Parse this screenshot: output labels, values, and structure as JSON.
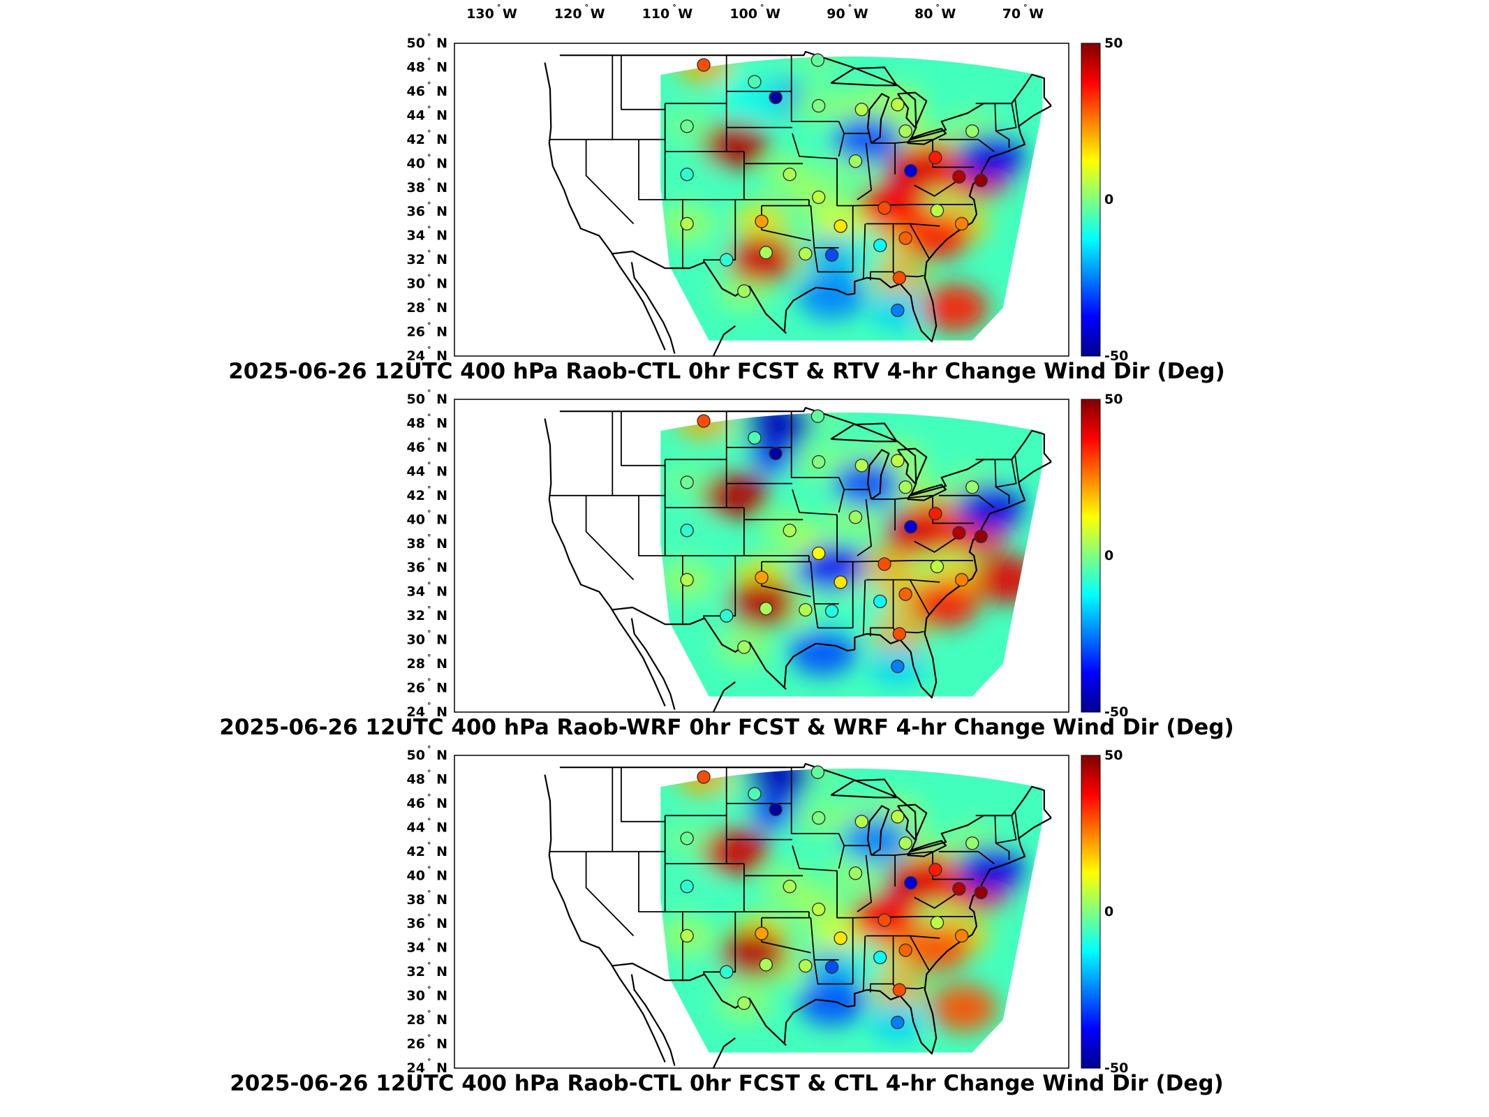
{
  "figure": {
    "lon_ticks": [
      {
        "value": -130,
        "deg": "130",
        "suffix": "W"
      },
      {
        "value": -120,
        "deg": "120",
        "suffix": "W"
      },
      {
        "value": -110,
        "deg": "110",
        "suffix": "W"
      },
      {
        "value": -100,
        "deg": "100",
        "suffix": "W"
      },
      {
        "value": -90,
        "deg": "90",
        "suffix": "W"
      },
      {
        "value": -80,
        "deg": "80",
        "suffix": "W"
      },
      {
        "value": -70,
        "deg": "70",
        "suffix": "W"
      }
    ],
    "lat_ticks": [
      {
        "value": 50,
        "deg": "50",
        "suffix": "N"
      },
      {
        "value": 48,
        "deg": "48",
        "suffix": "N"
      },
      {
        "value": 46,
        "deg": "46",
        "suffix": "N"
      },
      {
        "value": 44,
        "deg": "44",
        "suffix": "N"
      },
      {
        "value": 42,
        "deg": "42",
        "suffix": "N"
      },
      {
        "value": 40,
        "deg": "40",
        "suffix": "N"
      },
      {
        "value": 38,
        "deg": "38",
        "suffix": "N"
      },
      {
        "value": 36,
        "deg": "36",
        "suffix": "N"
      },
      {
        "value": 34,
        "deg": "34",
        "suffix": "N"
      },
      {
        "value": 32,
        "deg": "32",
        "suffix": "N"
      },
      {
        "value": 30,
        "deg": "30",
        "suffix": "N"
      },
      {
        "value": 28,
        "deg": "28",
        "suffix": "N"
      },
      {
        "value": 26,
        "deg": "26",
        "suffix": "N"
      },
      {
        "value": 24,
        "deg": "24",
        "suffix": "N"
      }
    ],
    "colorbar": {
      "min": -50,
      "max": 50,
      "labels": [
        "50",
        "0",
        "-50"
      ],
      "colormap": [
        "#00008f",
        "#0000ff",
        "#0080ff",
        "#00ffff",
        "#80ff80",
        "#ffff00",
        "#ff8000",
        "#ff0000",
        "#800000"
      ]
    },
    "colors": {
      "background": "#ffffff",
      "border": "#000000",
      "station_outline": "#333333"
    }
  },
  "chart_data": [
    {
      "type": "heatmap",
      "title": "2025-06-26 12UTC 400 hPa Raob-CTL 0hr FCST & RTV 4-hr Change Wind Dir (Deg)",
      "units": "Deg",
      "xlim": [
        -135,
        -65
      ],
      "ylim": [
        24,
        50
      ],
      "clim": [
        -50,
        50
      ],
      "stations": [
        {
          "lon": -106.6,
          "lat": 48.2,
          "value": 30
        },
        {
          "lon": -100.8,
          "lat": 46.8,
          "value": -5
        },
        {
          "lon": -98.4,
          "lat": 45.5,
          "value": -48
        },
        {
          "lon": -93.6,
          "lat": 48.6,
          "value": -3
        },
        {
          "lon": -93.5,
          "lat": 44.8,
          "value": 0
        },
        {
          "lon": -108.5,
          "lat": 43.1,
          "value": -2
        },
        {
          "lon": -108.5,
          "lat": 39.1,
          "value": -8
        },
        {
          "lon": -88.6,
          "lat": 44.5,
          "value": 5
        },
        {
          "lon": -84.5,
          "lat": 44.9,
          "value": 6
        },
        {
          "lon": -83.6,
          "lat": 42.7,
          "value": 4
        },
        {
          "lon": -76.0,
          "lat": 42.7,
          "value": 2
        },
        {
          "lon": -89.3,
          "lat": 40.2,
          "value": 3
        },
        {
          "lon": -83.0,
          "lat": 39.4,
          "value": -42
        },
        {
          "lon": -80.2,
          "lat": 40.5,
          "value": 35
        },
        {
          "lon": -77.5,
          "lat": 38.9,
          "value": 45
        },
        {
          "lon": -75.0,
          "lat": 38.6,
          "value": 48
        },
        {
          "lon": -96.8,
          "lat": 39.1,
          "value": 4
        },
        {
          "lon": -93.5,
          "lat": 37.2,
          "value": 6
        },
        {
          "lon": -86.0,
          "lat": 36.3,
          "value": 30
        },
        {
          "lon": -80.0,
          "lat": 36.1,
          "value": 6
        },
        {
          "lon": -77.2,
          "lat": 35.0,
          "value": 25
        },
        {
          "lon": -100.0,
          "lat": 35.2,
          "value": 22
        },
        {
          "lon": -91.0,
          "lat": 34.8,
          "value": 15
        },
        {
          "lon": -108.5,
          "lat": 35.0,
          "value": 5
        },
        {
          "lon": -104.0,
          "lat": 32.0,
          "value": -8
        },
        {
          "lon": -99.5,
          "lat": 32.6,
          "value": 4
        },
        {
          "lon": -95.0,
          "lat": 32.5,
          "value": 5
        },
        {
          "lon": -92.0,
          "lat": 32.4,
          "value": -30
        },
        {
          "lon": -86.5,
          "lat": 33.2,
          "value": -12
        },
        {
          "lon": -83.6,
          "lat": 33.8,
          "value": 28
        },
        {
          "lon": -84.3,
          "lat": 30.5,
          "value": 30
        },
        {
          "lon": -102.0,
          "lat": 29.4,
          "value": 3
        },
        {
          "lon": -84.5,
          "lat": 27.8,
          "value": -25
        }
      ],
      "field_features": [
        {
          "lon": -103,
          "lat": 41.5,
          "value": 45
        },
        {
          "lon": -101,
          "lat": 45.5,
          "value": -10
        },
        {
          "lon": -100,
          "lat": 32,
          "value": 42
        },
        {
          "lon": -85,
          "lat": 36.5,
          "value": 38
        },
        {
          "lon": -82,
          "lat": 39.5,
          "value": 40
        },
        {
          "lon": -80,
          "lat": 34,
          "value": 35
        },
        {
          "lon": -88,
          "lat": 42,
          "value": -30
        },
        {
          "lon": -92,
          "lat": 29,
          "value": -25
        },
        {
          "lon": -78,
          "lat": 28,
          "value": 35
        },
        {
          "lon": -74,
          "lat": 40.5,
          "value": -40
        }
      ]
    },
    {
      "type": "heatmap",
      "title": "2025-06-26 12UTC 400 hPa Raob-WRF 0hr FCST & WRF 4-hr Change Wind Dir (Deg)",
      "units": "Deg",
      "xlim": [
        -135,
        -65
      ],
      "ylim": [
        24,
        50
      ],
      "clim": [
        -50,
        50
      ],
      "stations": [
        {
          "lon": -106.6,
          "lat": 48.2,
          "value": 30
        },
        {
          "lon": -100.8,
          "lat": 46.8,
          "value": -5
        },
        {
          "lon": -98.4,
          "lat": 45.5,
          "value": -48
        },
        {
          "lon": -93.6,
          "lat": 48.6,
          "value": -3
        },
        {
          "lon": -93.5,
          "lat": 44.8,
          "value": 0
        },
        {
          "lon": -108.5,
          "lat": 43.1,
          "value": -2
        },
        {
          "lon": -108.5,
          "lat": 39.1,
          "value": -8
        },
        {
          "lon": -88.6,
          "lat": 44.5,
          "value": 5
        },
        {
          "lon": -84.5,
          "lat": 44.9,
          "value": 6
        },
        {
          "lon": -83.6,
          "lat": 42.7,
          "value": 4
        },
        {
          "lon": -76.0,
          "lat": 42.7,
          "value": 2
        },
        {
          "lon": -89.3,
          "lat": 40.2,
          "value": 3
        },
        {
          "lon": -83.0,
          "lat": 39.4,
          "value": -42
        },
        {
          "lon": -80.2,
          "lat": 40.5,
          "value": 35
        },
        {
          "lon": -77.5,
          "lat": 38.9,
          "value": 45
        },
        {
          "lon": -75.0,
          "lat": 38.6,
          "value": 48
        },
        {
          "lon": -96.8,
          "lat": 39.1,
          "value": 4
        },
        {
          "lon": -93.5,
          "lat": 37.2,
          "value": 12
        },
        {
          "lon": -86.0,
          "lat": 36.3,
          "value": 30
        },
        {
          "lon": -80.0,
          "lat": 36.1,
          "value": 6
        },
        {
          "lon": -77.2,
          "lat": 35.0,
          "value": 25
        },
        {
          "lon": -100.0,
          "lat": 35.2,
          "value": 22
        },
        {
          "lon": -91.0,
          "lat": 34.8,
          "value": 15
        },
        {
          "lon": -108.5,
          "lat": 35.0,
          "value": 5
        },
        {
          "lon": -104.0,
          "lat": 32.0,
          "value": -8
        },
        {
          "lon": -99.5,
          "lat": 32.6,
          "value": 4
        },
        {
          "lon": -95.0,
          "lat": 32.5,
          "value": 5
        },
        {
          "lon": -92.0,
          "lat": 32.4,
          "value": -10
        },
        {
          "lon": -86.5,
          "lat": 33.2,
          "value": -12
        },
        {
          "lon": -83.6,
          "lat": 33.8,
          "value": 28
        },
        {
          "lon": -84.3,
          "lat": 30.5,
          "value": 30
        },
        {
          "lon": -102.0,
          "lat": 29.4,
          "value": 3
        },
        {
          "lon": -84.5,
          "lat": 27.8,
          "value": -25
        }
      ],
      "field_features": [
        {
          "lon": -103,
          "lat": 42,
          "value": 45
        },
        {
          "lon": -98,
          "lat": 48,
          "value": -45
        },
        {
          "lon": -100,
          "lat": 33,
          "value": 45
        },
        {
          "lon": -92,
          "lat": 36,
          "value": -35
        },
        {
          "lon": -82,
          "lat": 39,
          "value": 40
        },
        {
          "lon": -79,
          "lat": 33,
          "value": 35
        },
        {
          "lon": -88,
          "lat": 43,
          "value": -30
        },
        {
          "lon": -93,
          "lat": 29,
          "value": -30
        },
        {
          "lon": -72,
          "lat": 35,
          "value": 40
        },
        {
          "lon": -74,
          "lat": 41,
          "value": -40
        }
      ]
    },
    {
      "type": "heatmap",
      "title": "2025-06-26 12UTC 400 hPa Raob-CTL 0hr FCST & CTL 4-hr Change Wind Dir (Deg)",
      "units": "Deg",
      "xlim": [
        -135,
        -65
      ],
      "ylim": [
        24,
        50
      ],
      "clim": [
        -50,
        50
      ],
      "stations": [
        {
          "lon": -106.6,
          "lat": 48.2,
          "value": 30
        },
        {
          "lon": -100.8,
          "lat": 46.8,
          "value": -5
        },
        {
          "lon": -98.4,
          "lat": 45.5,
          "value": -48
        },
        {
          "lon": -93.6,
          "lat": 48.6,
          "value": -3
        },
        {
          "lon": -93.5,
          "lat": 44.8,
          "value": 0
        },
        {
          "lon": -108.5,
          "lat": 43.1,
          "value": -2
        },
        {
          "lon": -108.5,
          "lat": 39.1,
          "value": -8
        },
        {
          "lon": -88.6,
          "lat": 44.5,
          "value": 5
        },
        {
          "lon": -84.5,
          "lat": 44.9,
          "value": 6
        },
        {
          "lon": -83.6,
          "lat": 42.7,
          "value": 4
        },
        {
          "lon": -76.0,
          "lat": 42.7,
          "value": 2
        },
        {
          "lon": -89.3,
          "lat": 40.2,
          "value": 3
        },
        {
          "lon": -83.0,
          "lat": 39.4,
          "value": -42
        },
        {
          "lon": -80.2,
          "lat": 40.5,
          "value": 35
        },
        {
          "lon": -77.5,
          "lat": 38.9,
          "value": 45
        },
        {
          "lon": -75.0,
          "lat": 38.6,
          "value": 48
        },
        {
          "lon": -96.8,
          "lat": 39.1,
          "value": 4
        },
        {
          "lon": -93.5,
          "lat": 37.2,
          "value": 6
        },
        {
          "lon": -86.0,
          "lat": 36.3,
          "value": 30
        },
        {
          "lon": -80.0,
          "lat": 36.1,
          "value": 6
        },
        {
          "lon": -77.2,
          "lat": 35.0,
          "value": 25
        },
        {
          "lon": -100.0,
          "lat": 35.2,
          "value": 22
        },
        {
          "lon": -91.0,
          "lat": 34.8,
          "value": 15
        },
        {
          "lon": -108.5,
          "lat": 35.0,
          "value": 5
        },
        {
          "lon": -104.0,
          "lat": 32.0,
          "value": -8
        },
        {
          "lon": -99.5,
          "lat": 32.6,
          "value": 4
        },
        {
          "lon": -95.0,
          "lat": 32.5,
          "value": 5
        },
        {
          "lon": -92.0,
          "lat": 32.4,
          "value": -30
        },
        {
          "lon": -86.5,
          "lat": 33.2,
          "value": -12
        },
        {
          "lon": -83.6,
          "lat": 33.8,
          "value": 28
        },
        {
          "lon": -84.3,
          "lat": 30.5,
          "value": 30
        },
        {
          "lon": -102.0,
          "lat": 29.4,
          "value": 3
        },
        {
          "lon": -84.5,
          "lat": 27.8,
          "value": -25
        }
      ],
      "field_features": [
        {
          "lon": -103,
          "lat": 42,
          "value": 42
        },
        {
          "lon": -98,
          "lat": 48.5,
          "value": -45
        },
        {
          "lon": -101,
          "lat": 33.5,
          "value": 45
        },
        {
          "lon": -86,
          "lat": 36.5,
          "value": 38
        },
        {
          "lon": -82,
          "lat": 39.5,
          "value": 40
        },
        {
          "lon": -80,
          "lat": 34,
          "value": 30
        },
        {
          "lon": -87,
          "lat": 43,
          "value": -25
        },
        {
          "lon": -92,
          "lat": 29.5,
          "value": -30
        },
        {
          "lon": -77,
          "lat": 29,
          "value": 30
        },
        {
          "lon": -74,
          "lat": 40.5,
          "value": -40
        }
      ]
    }
  ]
}
